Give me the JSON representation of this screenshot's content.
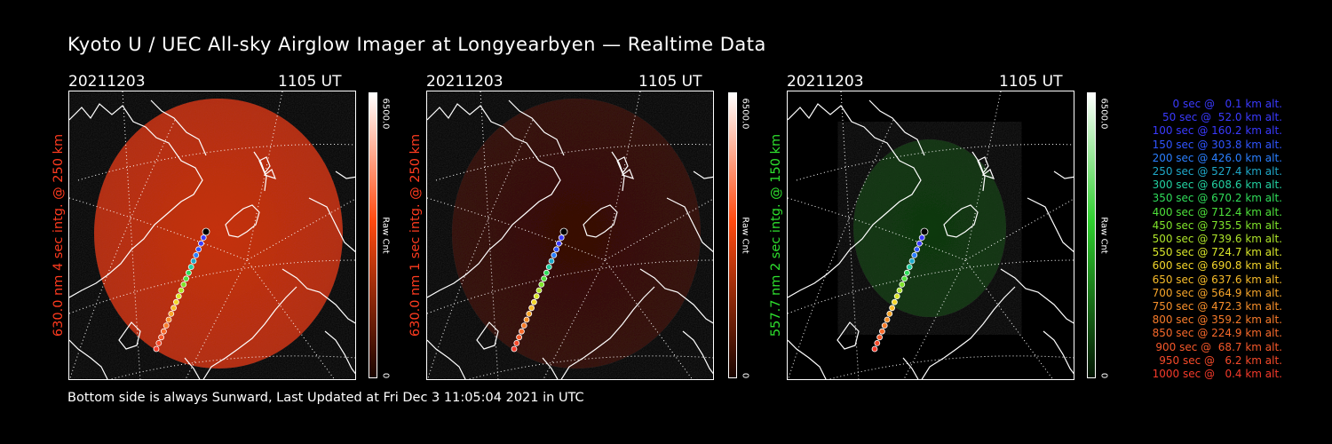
{
  "title": "Kyoto U / UEC All-sky Airglow Imager at Longyearbyen — Realtime Data",
  "footer": "Bottom side is always Sunward, Last Updated at Fri Dec  3 11:05:04 2021 in UTC",
  "panels": [
    {
      "date": "20211203",
      "time": "1105 UT",
      "side_label": "630.0 nm 4 sec intg. @ 250 km",
      "label_color": "#ff3b1f",
      "colorbar_max": "6500.0",
      "colorbar_unit": "Raw Cnt",
      "colorbar_min": "0",
      "colorbar_color": "#ff4a10",
      "image_color": "#c8320c",
      "intensity": 1.0
    },
    {
      "date": "20211203",
      "time": "1105 UT",
      "side_label": "630.0 nm 1 sec intg. @ 250 km",
      "label_color": "#ff3b1f",
      "colorbar_max": "6500.0",
      "colorbar_unit": "Raw Cnt",
      "colorbar_min": "0",
      "colorbar_color": "#ff4a10",
      "image_color": "#3a0b03",
      "intensity": 0.3
    },
    {
      "date": "20211203",
      "time": "1105 UT",
      "side_label": "557.7 nm 2 sec intg. @ 150 km",
      "label_color": "#2ee02e",
      "colorbar_max": "6500.0",
      "colorbar_unit": "Raw Cnt",
      "colorbar_min": "0",
      "colorbar_color": "#2ecf2e",
      "image_color": "#0f3a0f",
      "intensity": 0.3
    }
  ],
  "legend": [
    {
      "text": "0 sec @   0.1 km alt.",
      "color": "#3a3aff"
    },
    {
      "text": "50 sec @  52.0 km alt.",
      "color": "#3a3aff"
    },
    {
      "text": "100 sec @ 160.2 km alt.",
      "color": "#3a3aff"
    },
    {
      "text": "150 sec @ 303.8 km alt.",
      "color": "#2f55ff"
    },
    {
      "text": "200 sec @ 426.0 km alt.",
      "color": "#2a7fff"
    },
    {
      "text": "250 sec @ 527.4 km alt.",
      "color": "#1fa8c8"
    },
    {
      "text": "300 sec @ 608.6 km alt.",
      "color": "#22d0a0"
    },
    {
      "text": "350 sec @ 670.2 km alt.",
      "color": "#2fdc5a"
    },
    {
      "text": "400 sec @ 712.4 km alt.",
      "color": "#4ee03a"
    },
    {
      "text": "450 sec @ 735.5 km alt.",
      "color": "#7fe32a"
    },
    {
      "text": "500 sec @ 739.6 km alt.",
      "color": "#aee52a"
    },
    {
      "text": "550 sec @ 724.7 km alt.",
      "color": "#d8e62a"
    },
    {
      "text": "600 sec @ 690.8 km alt.",
      "color": "#f2d52a"
    },
    {
      "text": "650 sec @ 637.6 km alt.",
      "color": "#f7bb2a"
    },
    {
      "text": "700 sec @ 564.9 km alt.",
      "color": "#f7a52a"
    },
    {
      "text": "750 sec @ 472.3 km alt.",
      "color": "#f78f2a"
    },
    {
      "text": "800 sec @ 359.2 km alt.",
      "color": "#f77b2a"
    },
    {
      "text": "850 sec @ 224.9 km alt.",
      "color": "#f7692a"
    },
    {
      "text": "900 sec @  68.7 km alt.",
      "color": "#f5582a"
    },
    {
      "text": "950 sec @   6.2 km alt.",
      "color": "#f54a2a"
    },
    {
      "text": "1000 sec @   0.4 km alt.",
      "color": "#f53a2a"
    }
  ]
}
